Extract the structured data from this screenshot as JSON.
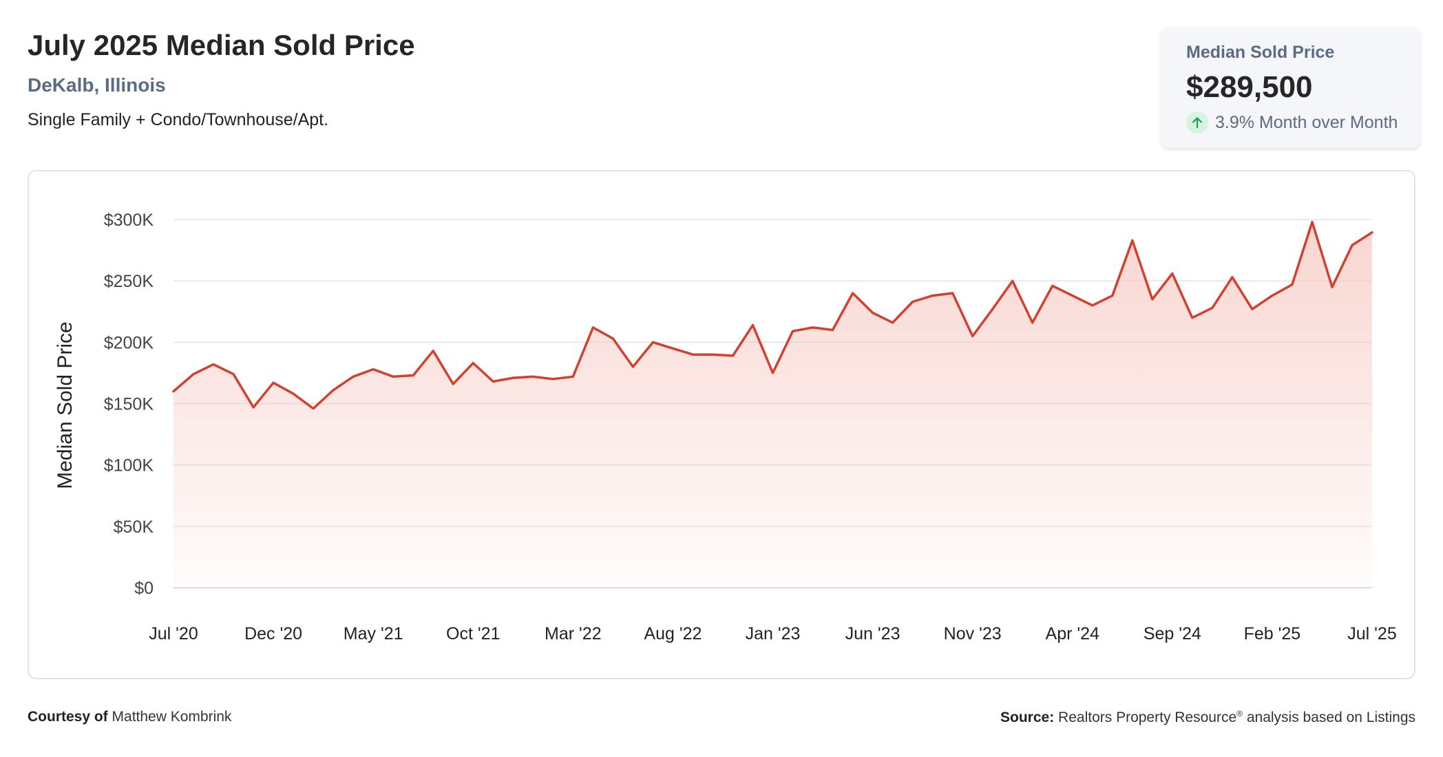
{
  "header": {
    "title": "July 2025 Median Sold Price",
    "location": "DeKalb, Illinois",
    "property_type": "Single Family + Condo/Townhouse/Apt."
  },
  "stat": {
    "label": "Median Sold Price",
    "value": "$289,500",
    "change": "3.9% Month over Month",
    "icon": "arrow-up-icon"
  },
  "footer": {
    "courtesy_label": "Courtesy of",
    "courtesy_name": "Matthew Kombrink",
    "source_label": "Source:",
    "source_text_1": "Realtors Property Resource",
    "source_mark": "®",
    "source_text_2": "analysis based on Listings"
  },
  "colors": {
    "line": "#d4402e",
    "area_top": "#f6c8c1",
    "grid": "#e3e3e3",
    "up_green": "#1f9d55"
  },
  "chart_data": {
    "type": "area",
    "title": "",
    "xlabel": "",
    "ylabel": "Median Sold Price",
    "ylim": [
      0,
      300000
    ],
    "yticks": [
      0,
      50000,
      100000,
      150000,
      200000,
      250000,
      300000
    ],
    "ytick_labels": [
      "$0",
      "$50K",
      "$100K",
      "$150K",
      "$200K",
      "$250K",
      "$300K"
    ],
    "xtick_labels": [
      "Jul '20",
      "Dec '20",
      "May '21",
      "Oct '21",
      "Mar '22",
      "Aug '22",
      "Jan '23",
      "Jun '23",
      "Nov '23",
      "Apr '24",
      "Sep '24",
      "Feb '25",
      "Jul '25"
    ],
    "xtick_every": 5,
    "grid": true,
    "legend": "none",
    "series": [
      {
        "values": [
          160000,
          174000,
          182000,
          174000,
          147000,
          167000,
          158000,
          146000,
          161000,
          172000,
          178000,
          172000,
          173000,
          193000,
          166000,
          183000,
          168000,
          171000,
          172000,
          170000,
          172000,
          212000,
          203000,
          180000,
          200000,
          195000,
          190000,
          190000,
          189000,
          214000,
          175000,
          209000,
          212000,
          210000,
          240000,
          224000,
          216000,
          233000,
          238000,
          240000,
          205000,
          227000,
          250000,
          216000,
          246000,
          238000,
          230000,
          238000,
          283000,
          235000,
          256000,
          220000,
          228000,
          253000,
          227000,
          238000,
          247000,
          298000,
          245000,
          279000,
          289500
        ]
      }
    ]
  }
}
